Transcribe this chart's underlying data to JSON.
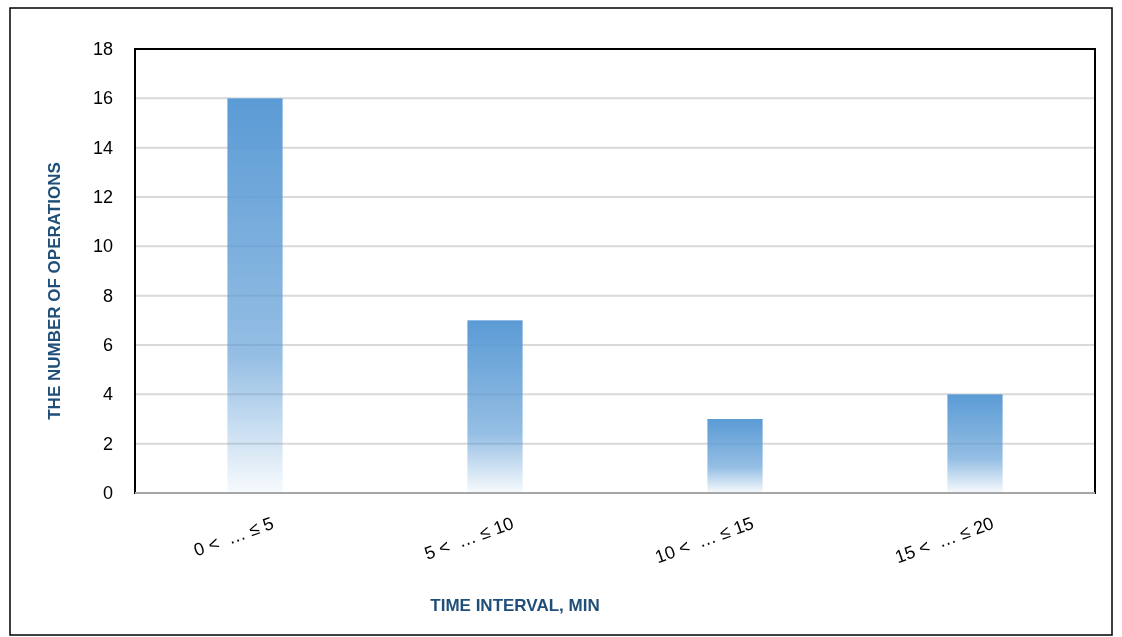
{
  "chart_data": {
    "type": "bar",
    "xlabel": "TIME INTERVAL, MIN",
    "ylabel": "THE NUMBER OF OPERATIONS",
    "categories": [
      "0 <  … ≤ 5",
      "5 <  … ≤ 10",
      "10 <  … ≤ 15",
      "15 <  … ≤ 20"
    ],
    "values": [
      16,
      7,
      3,
      4
    ],
    "color": "#5b9bd5",
    "ylim": [
      0,
      18
    ],
    "yticks": [
      0,
      2,
      4,
      6,
      8,
      10,
      12,
      14,
      16,
      18
    ],
    "grid": "y"
  }
}
